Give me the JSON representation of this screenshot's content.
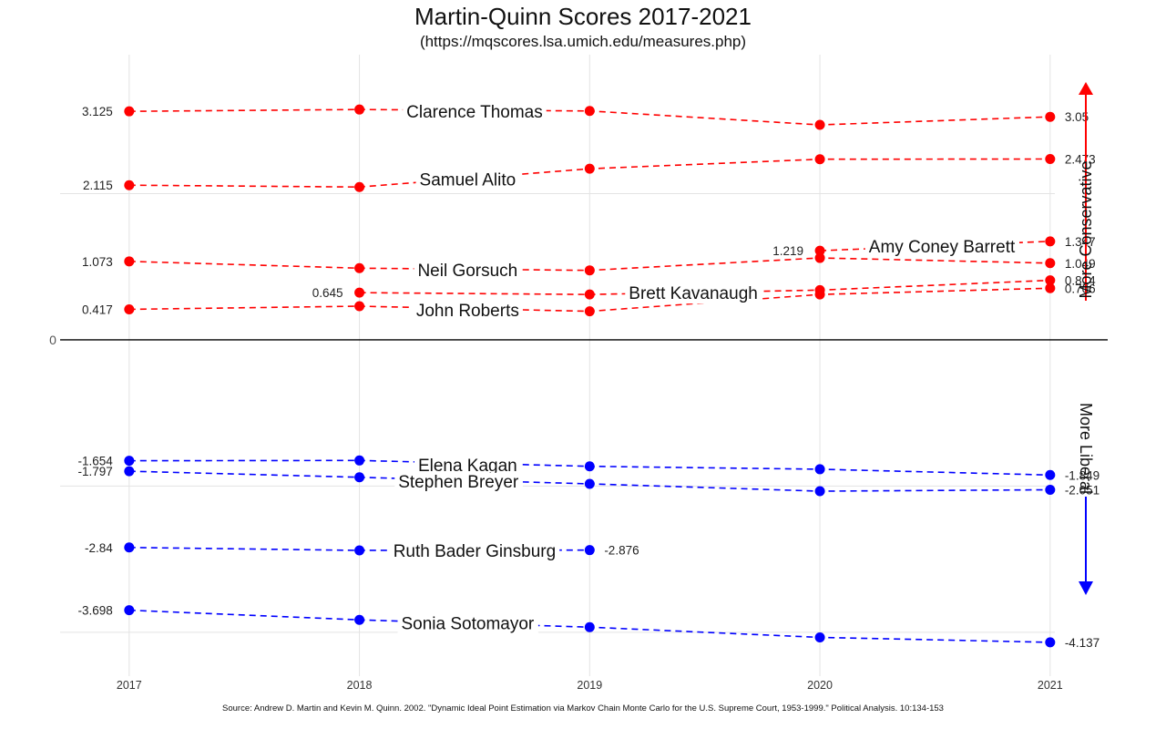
{
  "chart_data": {
    "type": "line",
    "title": "Martin-Quinn Scores 2017-2021",
    "subtitle": "(https://mqscores.lsa.umich.edu/measures.php)",
    "source": "Source:  Andrew D. Martin and Kevin M. Quinn. 2002.  \"Dynamic Ideal Point Estimation via Markov Chain Monte Carlo for the U.S. Supreme Court, 1953-1999.\"  Political Analysis. 10:134-153",
    "x": [
      2017,
      2018,
      2019,
      2020,
      2021
    ],
    "x_tick_labels": [
      "2017",
      "2018",
      "2019",
      "2020",
      "2021"
    ],
    "xlim": [
      2016.7,
      2021.25
    ],
    "ylim": [
      -4.6,
      3.9
    ],
    "zero_label": "0",
    "conservative_label": "More Conservative",
    "liberal_label": "More Liberal",
    "conservative_color": "#ff0000",
    "liberal_color": "#0000ff",
    "grid": true,
    "series": [
      {
        "name": "Clarence Thomas",
        "side": "conservative",
        "values": [
          3.125,
          3.15,
          3.13,
          2.94,
          3.05
        ],
        "start_label": "3.125",
        "end_label": "3.05",
        "name_pos": [
          2018.5,
          3.13
        ]
      },
      {
        "name": "Samuel Alito",
        "side": "conservative",
        "values": [
          2.115,
          2.09,
          2.34,
          2.47,
          2.473
        ],
        "start_label": "2.115",
        "end_label": "2.473",
        "name_pos": [
          2018.47,
          2.2
        ]
      },
      {
        "name": "Neil Gorsuch",
        "side": "conservative",
        "values": [
          1.073,
          0.98,
          0.95,
          1.12,
          1.049
        ],
        "start_label": "1.073",
        "end_label": "1.049",
        "name_pos": [
          2018.47,
          0.96
        ]
      },
      {
        "name": "John Roberts",
        "side": "conservative",
        "values": [
          0.417,
          0.46,
          0.39,
          0.62,
          0.706
        ],
        "start_label": "0.417",
        "end_label": "0.706",
        "name_pos": [
          2018.47,
          0.41
        ]
      },
      {
        "name": "Brett Kavanaugh",
        "side": "conservative",
        "values": [
          null,
          0.645,
          0.62,
          0.68,
          0.814
        ],
        "start_label": "0.645",
        "end_label": "0.814",
        "name_pos": [
          2019.45,
          0.645
        ]
      },
      {
        "name": "Amy Coney Barrett",
        "side": "conservative",
        "values": [
          null,
          null,
          null,
          1.219,
          1.347
        ],
        "start_label": "1.219",
        "end_label": "1.347",
        "name_pos": [
          2020.53,
          1.28
        ]
      },
      {
        "name": "Elena Kagan",
        "side": "liberal",
        "values": [
          -1.654,
          -1.65,
          -1.73,
          -1.77,
          -1.849
        ],
        "start_label": "-1.654",
        "end_label": "-1.849",
        "name_pos": [
          2018.47,
          -1.71
        ]
      },
      {
        "name": "Stephen Breyer",
        "side": "liberal",
        "values": [
          -1.797,
          -1.88,
          -1.97,
          -2.07,
          -2.051
        ],
        "start_label": "-1.797",
        "end_label": "-2.051",
        "name_pos": [
          2018.43,
          -1.93
        ]
      },
      {
        "name": "Ruth Bader Ginsburg",
        "side": "liberal",
        "values": [
          -2.84,
          -2.88,
          -2.876,
          null,
          null
        ],
        "start_label": "-2.84",
        "end_label": "-2.876",
        "name_pos": [
          2018.5,
          -2.88
        ]
      },
      {
        "name": "Sonia Sotomayor",
        "side": "liberal",
        "values": [
          -3.698,
          -3.83,
          -3.93,
          -4.07,
          -4.137
        ],
        "start_label": "-3.698",
        "end_label": "-4.137",
        "name_pos": [
          2018.47,
          -3.87
        ]
      }
    ]
  }
}
